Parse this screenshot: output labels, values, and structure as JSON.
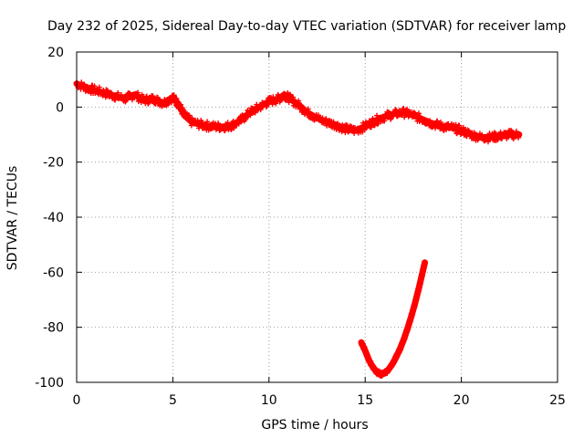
{
  "chart_data": {
    "type": "line",
    "title": "Day 232 of 2025, Sidereal Day-to-day VTEC variation (SDTVAR) for receiver lamp",
    "xlabel": "GPS time / hours",
    "ylabel": "SDTVAR / TECUs",
    "xlim": [
      0,
      25
    ],
    "ylim": [
      -100,
      20
    ],
    "grid": true,
    "legend": "none",
    "x_ticks": [
      0,
      5,
      10,
      15,
      20,
      25
    ],
    "x_tick_labels": [
      "0",
      "5",
      "10",
      "15",
      "20",
      "25"
    ],
    "y_ticks": [
      20,
      0,
      -20,
      -40,
      -60,
      -80,
      -100
    ],
    "y_tick_labels": [
      "20",
      "0",
      "-20",
      "-40",
      "-60",
      "-80",
      "-100"
    ],
    "series": [
      {
        "name": "SDTVAR main",
        "color": "#ff0000",
        "spread": 1.6,
        "x": [
          0.0,
          0.5,
          1.0,
          1.5,
          2.0,
          2.5,
          3.0,
          3.5,
          4.0,
          4.5,
          5.0,
          5.3,
          5.6,
          6.0,
          6.5,
          7.0,
          7.5,
          8.0,
          8.5,
          9.0,
          9.5,
          10.0,
          10.5,
          10.8,
          11.0,
          11.5,
          12.0,
          12.5,
          13.0,
          13.5,
          14.0,
          14.5,
          15.0,
          15.5,
          16.0,
          16.5,
          17.0,
          17.5,
          18.0,
          18.5,
          19.0,
          19.5,
          20.0,
          20.5,
          21.0,
          21.5,
          22.0,
          22.5,
          23.0
        ],
        "y": [
          8.5,
          7.0,
          6.0,
          5.0,
          4.0,
          3.0,
          4.5,
          2.5,
          3.0,
          1.5,
          3.5,
          1.0,
          -3.0,
          -5.5,
          -6.5,
          -7.0,
          -7.2,
          -6.8,
          -5.0,
          -2.0,
          0.0,
          2.0,
          3.0,
          4.5,
          3.5,
          1.0,
          -2.0,
          -4.0,
          -5.5,
          -6.5,
          -8.0,
          -8.5,
          -7.0,
          -5.0,
          -3.5,
          -2.5,
          -2.0,
          -3.0,
          -4.5,
          -6.0,
          -7.0,
          -7.5,
          -8.5,
          -10.0,
          -11.0,
          -11.0,
          -10.5,
          -10.0,
          -10.0
        ]
      },
      {
        "name": "SDTVAR dip",
        "color": "#ff0000",
        "spread": 0.8,
        "x": [
          14.8,
          15.0,
          15.2,
          15.4,
          15.6,
          15.8,
          16.0,
          16.2,
          16.4,
          16.6,
          16.8,
          17.0,
          17.2,
          17.4,
          17.6,
          17.8,
          18.0,
          18.1
        ],
        "y": [
          -85.5,
          -88.5,
          -92.0,
          -94.5,
          -96.3,
          -97.0,
          -96.8,
          -95.5,
          -93.5,
          -91.0,
          -88.0,
          -84.5,
          -80.5,
          -76.0,
          -71.0,
          -65.5,
          -59.5,
          -56.5
        ]
      }
    ]
  }
}
